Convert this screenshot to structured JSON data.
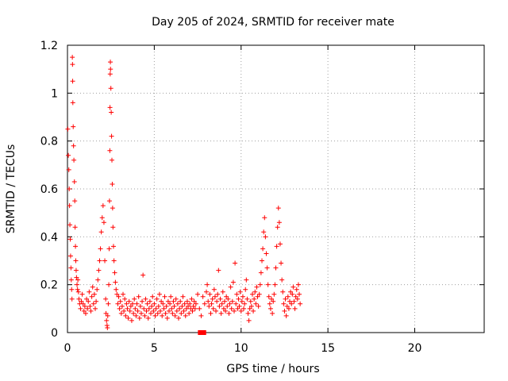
{
  "chart_data": {
    "type": "scatter",
    "title": "Day 205 of 2024, SRMTID for receiver mate",
    "xlabel": "GPS time / hours",
    "ylabel": "SRMTID / TECUs",
    "xlim": [
      0,
      24
    ],
    "ylim": [
      0,
      1.2
    ],
    "xticks": [
      0,
      5,
      10,
      15,
      20
    ],
    "xtick_labels": [
      "0",
      "5",
      "10",
      "15",
      "20"
    ],
    "yticks": [
      0,
      0.2,
      0.4,
      0.6,
      0.8,
      1.0,
      1.2
    ],
    "ytick_labels": [
      "0",
      "0.2",
      "0.4",
      "0.6",
      "0.8",
      "1",
      "1.2"
    ],
    "grid": true,
    "marker": "plus",
    "color": "#ff0000",
    "series": [
      {
        "name": "SRMTID",
        "points": [
          [
            0.02,
            0.85
          ],
          [
            0.05,
            0.74
          ],
          [
            0.08,
            0.68
          ],
          [
            0.1,
            0.6
          ],
          [
            0.12,
            0.53
          ],
          [
            0.14,
            0.45
          ],
          [
            0.16,
            0.39
          ],
          [
            0.18,
            0.32
          ],
          [
            0.2,
            0.27
          ],
          [
            0.22,
            0.22
          ],
          [
            0.24,
            0.18
          ],
          [
            0.26,
            0.14
          ],
          [
            0.28,
            1.15
          ],
          [
            0.29,
            1.12
          ],
          [
            0.3,
            1.05
          ],
          [
            0.31,
            0.96
          ],
          [
            0.33,
            0.86
          ],
          [
            0.35,
            0.78
          ],
          [
            0.37,
            0.72
          ],
          [
            0.4,
            0.63
          ],
          [
            0.42,
            0.55
          ],
          [
            0.44,
            0.44
          ],
          [
            0.46,
            0.36
          ],
          [
            0.48,
            0.3
          ],
          [
            0.5,
            0.26
          ],
          [
            0.52,
            0.23
          ],
          [
            0.55,
            0.2
          ],
          [
            0.58,
            0.18
          ],
          [
            0.6,
            0.22
          ],
          [
            0.63,
            0.17
          ],
          [
            0.66,
            0.14
          ],
          [
            0.7,
            0.12
          ],
          [
            0.75,
            0.1
          ],
          [
            0.8,
            0.13
          ],
          [
            0.85,
            0.16
          ],
          [
            0.9,
            0.12
          ],
          [
            0.95,
            0.09
          ],
          [
            1.0,
            0.11
          ],
          [
            1.05,
            0.08
          ],
          [
            1.1,
            0.14
          ],
          [
            1.15,
            0.1
          ],
          [
            1.2,
            0.13
          ],
          [
            1.25,
            0.17
          ],
          [
            1.3,
            0.11
          ],
          [
            1.35,
            0.09
          ],
          [
            1.4,
            0.15
          ],
          [
            1.45,
            0.19
          ],
          [
            1.5,
            0.12
          ],
          [
            1.55,
            0.16
          ],
          [
            1.6,
            0.1
          ],
          [
            1.65,
            0.13
          ],
          [
            1.7,
            0.18
          ],
          [
            1.75,
            0.22
          ],
          [
            1.8,
            0.26
          ],
          [
            1.85,
            0.3
          ],
          [
            1.9,
            0.35
          ],
          [
            1.95,
            0.42
          ],
          [
            2.0,
            0.48
          ],
          [
            2.05,
            0.53
          ],
          [
            2.1,
            0.46
          ],
          [
            2.15,
            0.3
          ],
          [
            2.2,
            0.14
          ],
          [
            2.22,
            0.08
          ],
          [
            2.25,
            0.05
          ],
          [
            2.28,
            0.03
          ],
          [
            2.3,
            0.02
          ],
          [
            2.32,
            0.07
          ],
          [
            2.35,
            0.12
          ],
          [
            2.38,
            0.2
          ],
          [
            2.4,
            0.35
          ],
          [
            2.42,
            0.55
          ],
          [
            2.44,
            0.76
          ],
          [
            2.45,
            0.94
          ],
          [
            2.46,
            1.08
          ],
          [
            2.47,
            1.13
          ],
          [
            2.48,
            1.1
          ],
          [
            2.5,
            1.02
          ],
          [
            2.52,
            0.92
          ],
          [
            2.54,
            0.82
          ],
          [
            2.56,
            0.72
          ],
          [
            2.58,
            0.62
          ],
          [
            2.6,
            0.52
          ],
          [
            2.62,
            0.44
          ],
          [
            2.65,
            0.36
          ],
          [
            2.68,
            0.3
          ],
          [
            2.72,
            0.25
          ],
          [
            2.76,
            0.21
          ],
          [
            2.8,
            0.18
          ],
          [
            2.85,
            0.16
          ],
          [
            2.9,
            0.12
          ],
          [
            2.95,
            0.15
          ],
          [
            3.0,
            0.1
          ],
          [
            3.05,
            0.13
          ],
          [
            3.1,
            0.08
          ],
          [
            3.15,
            0.11
          ],
          [
            3.2,
            0.16
          ],
          [
            3.25,
            0.09
          ],
          [
            3.3,
            0.14
          ],
          [
            3.35,
            0.07
          ],
          [
            3.4,
            0.12
          ],
          [
            3.45,
            0.1
          ],
          [
            3.5,
            0.06
          ],
          [
            3.55,
            0.13
          ],
          [
            3.6,
            0.09
          ],
          [
            3.65,
            0.11
          ],
          [
            3.7,
            0.05
          ],
          [
            3.75,
            0.12
          ],
          [
            3.8,
            0.08
          ],
          [
            3.85,
            0.14
          ],
          [
            3.9,
            0.1
          ],
          [
            3.95,
            0.07
          ],
          [
            4.0,
            0.12
          ],
          [
            4.05,
            0.09
          ],
          [
            4.1,
            0.15
          ],
          [
            4.15,
            0.06
          ],
          [
            4.2,
            0.11
          ],
          [
            4.25,
            0.08
          ],
          [
            4.3,
            0.13
          ],
          [
            4.35,
            0.24
          ],
          [
            4.4,
            0.1
          ],
          [
            4.45,
            0.07
          ],
          [
            4.5,
            0.14
          ],
          [
            4.55,
            0.09
          ],
          [
            4.6,
            0.12
          ],
          [
            4.65,
            0.06
          ],
          [
            4.7,
            0.1
          ],
          [
            4.75,
            0.13
          ],
          [
            4.8,
            0.08
          ],
          [
            4.85,
            0.11
          ],
          [
            4.9,
            0.15
          ],
          [
            4.95,
            0.09
          ],
          [
            5.0,
            0.12
          ],
          [
            5.05,
            0.07
          ],
          [
            5.1,
            0.1
          ],
          [
            5.15,
            0.14
          ],
          [
            5.2,
            0.08
          ],
          [
            5.25,
            0.11
          ],
          [
            5.3,
            0.16
          ],
          [
            5.35,
            0.09
          ],
          [
            5.4,
            0.13
          ],
          [
            5.45,
            0.07
          ],
          [
            5.5,
            0.12
          ],
          [
            5.55,
            0.1
          ],
          [
            5.6,
            0.15
          ],
          [
            5.65,
            0.08
          ],
          [
            5.7,
            0.11
          ],
          [
            5.75,
            0.06
          ],
          [
            5.8,
            0.13
          ],
          [
            5.85,
            0.09
          ],
          [
            5.9,
            0.12
          ],
          [
            5.95,
            0.15
          ],
          [
            6.0,
            0.1
          ],
          [
            6.05,
            0.08
          ],
          [
            6.1,
            0.13
          ],
          [
            6.15,
            0.11
          ],
          [
            6.2,
            0.07
          ],
          [
            6.25,
            0.14
          ],
          [
            6.3,
            0.09
          ],
          [
            6.35,
            0.12
          ],
          [
            6.4,
            0.06
          ],
          [
            6.45,
            0.1
          ],
          [
            6.5,
            0.13
          ],
          [
            6.55,
            0.08
          ],
          [
            6.6,
            0.11
          ],
          [
            6.65,
            0.15
          ],
          [
            6.7,
            0.09
          ],
          [
            6.75,
            0.12
          ],
          [
            6.8,
            0.07
          ],
          [
            6.85,
            0.1
          ],
          [
            6.9,
            0.13
          ],
          [
            6.95,
            0.11
          ],
          [
            7.0,
            0.08
          ],
          [
            7.05,
            0.12
          ],
          [
            7.1,
            0.1
          ],
          [
            7.15,
            0.14
          ],
          [
            7.2,
            0.09
          ],
          [
            7.25,
            0.11
          ],
          [
            7.3,
            0.13
          ],
          [
            7.35,
            0.1
          ],
          [
            7.4,
            0.12
          ],
          [
            7.5,
            0.16
          ],
          [
            7.6,
            0.1
          ],
          [
            7.7,
            0.07
          ],
          [
            7.8,
            0.15
          ],
          [
            7.9,
            0.12
          ],
          [
            8.0,
            0.17
          ],
          [
            8.05,
            0.2
          ],
          [
            8.1,
            0.13
          ],
          [
            8.15,
            0.11
          ],
          [
            8.2,
            0.16
          ],
          [
            8.25,
            0.08
          ],
          [
            8.3,
            0.12
          ],
          [
            8.35,
            0.14
          ],
          [
            8.4,
            0.1
          ],
          [
            8.45,
            0.18
          ],
          [
            8.5,
            0.15
          ],
          [
            8.55,
            0.09
          ],
          [
            8.6,
            0.13
          ],
          [
            8.65,
            0.16
          ],
          [
            8.7,
            0.26
          ],
          [
            8.75,
            0.11
          ],
          [
            8.8,
            0.14
          ],
          [
            8.85,
            0.08
          ],
          [
            8.9,
            0.12
          ],
          [
            8.95,
            0.17
          ],
          [
            9.0,
            0.1
          ],
          [
            9.05,
            0.13
          ],
          [
            9.1,
            0.09
          ],
          [
            9.15,
            0.15
          ],
          [
            9.2,
            0.11
          ],
          [
            9.25,
            0.14
          ],
          [
            9.3,
            0.08
          ],
          [
            9.35,
            0.12
          ],
          [
            9.4,
            0.19
          ],
          [
            9.45,
            0.1
          ],
          [
            9.5,
            0.13
          ],
          [
            9.55,
            0.21
          ],
          [
            9.6,
            0.09
          ],
          [
            9.65,
            0.29
          ],
          [
            9.7,
            0.12
          ],
          [
            9.75,
            0.16
          ],
          [
            9.8,
            0.1
          ],
          [
            9.85,
            0.14
          ],
          [
            9.9,
            0.11
          ],
          [
            9.95,
            0.17
          ],
          [
            10.0,
            0.09
          ],
          [
            10.05,
            0.13
          ],
          [
            10.1,
            0.15
          ],
          [
            10.15,
            0.1
          ],
          [
            10.2,
            0.12
          ],
          [
            10.25,
            0.18
          ],
          [
            10.3,
            0.22
          ],
          [
            10.35,
            0.14
          ],
          [
            10.4,
            0.08
          ],
          [
            10.45,
            0.05
          ],
          [
            10.5,
            0.1
          ],
          [
            10.55,
            0.13
          ],
          [
            10.6,
            0.11
          ],
          [
            10.65,
            0.16
          ],
          [
            10.7,
            0.09
          ],
          [
            10.75,
            0.14
          ],
          [
            10.8,
            0.17
          ],
          [
            10.85,
            0.12
          ],
          [
            10.9,
            0.19
          ],
          [
            10.95,
            0.15
          ],
          [
            11.0,
            0.11
          ],
          [
            11.05,
            0.16
          ],
          [
            11.1,
            0.2
          ],
          [
            11.15,
            0.25
          ],
          [
            11.2,
            0.3
          ],
          [
            11.25,
            0.35
          ],
          [
            11.3,
            0.42
          ],
          [
            11.35,
            0.48
          ],
          [
            11.4,
            0.4
          ],
          [
            11.45,
            0.33
          ],
          [
            11.5,
            0.27
          ],
          [
            11.55,
            0.2
          ],
          [
            11.6,
            0.15
          ],
          [
            11.65,
            0.12
          ],
          [
            11.7,
            0.1
          ],
          [
            11.75,
            0.14
          ],
          [
            11.8,
            0.08
          ],
          [
            11.85,
            0.13
          ],
          [
            11.9,
            0.16
          ],
          [
            11.95,
            0.2
          ],
          [
            12.0,
            0.27
          ],
          [
            12.05,
            0.36
          ],
          [
            12.1,
            0.44
          ],
          [
            12.15,
            0.52
          ],
          [
            12.2,
            0.46
          ],
          [
            12.25,
            0.37
          ],
          [
            12.3,
            0.29
          ],
          [
            12.35,
            0.22
          ],
          [
            12.4,
            0.17
          ],
          [
            12.45,
            0.12
          ],
          [
            12.5,
            0.09
          ],
          [
            12.55,
            0.14
          ],
          [
            12.6,
            0.07
          ],
          [
            12.65,
            0.11
          ],
          [
            12.7,
            0.15
          ],
          [
            12.75,
            0.1
          ],
          [
            12.8,
            0.13
          ],
          [
            12.85,
            0.17
          ],
          [
            12.9,
            0.12
          ],
          [
            12.95,
            0.16
          ],
          [
            13.0,
            0.19
          ],
          [
            13.05,
            0.13
          ],
          [
            13.1,
            0.1
          ],
          [
            13.15,
            0.15
          ],
          [
            13.2,
            0.18
          ],
          [
            13.25,
            0.14
          ],
          [
            13.3,
            0.2
          ],
          [
            13.35,
            0.16
          ],
          [
            13.4,
            0.12
          ]
        ]
      }
    ],
    "squares": [
      [
        7.65,
        0.0
      ],
      [
        7.85,
        0.0
      ]
    ]
  }
}
